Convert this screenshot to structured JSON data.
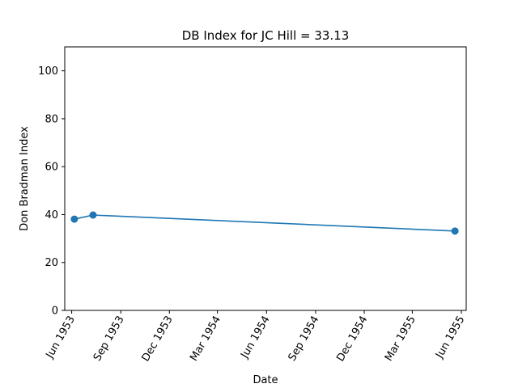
{
  "chart_data": {
    "type": "line",
    "title": "DB Index for JC Hill = 33.13",
    "xlabel": "Date",
    "ylabel": "Don Bradman Index",
    "x_ticks": [
      {
        "date": "1953-06-01",
        "label": "Jun 1953"
      },
      {
        "date": "1953-09-01",
        "label": "Sep 1953"
      },
      {
        "date": "1953-12-01",
        "label": "Dec 1953"
      },
      {
        "date": "1954-03-01",
        "label": "Mar 1954"
      },
      {
        "date": "1954-06-01",
        "label": "Jun 1954"
      },
      {
        "date": "1954-09-01",
        "label": "Sep 1954"
      },
      {
        "date": "1954-12-01",
        "label": "Dec 1954"
      },
      {
        "date": "1955-03-01",
        "label": "Mar 1955"
      },
      {
        "date": "1955-06-01",
        "label": "Jun 1955"
      }
    ],
    "y_ticks": [
      0,
      20,
      40,
      60,
      80,
      100
    ],
    "xlim": [
      "1953-05-19",
      "1955-06-10"
    ],
    "ylim": [
      0,
      110
    ],
    "grid": false,
    "color": "#1f77b4",
    "series": [
      {
        "x": [
          "1953-06-06",
          "1953-07-11",
          "1955-05-20"
        ],
        "y": [
          38.1,
          39.8,
          33.13
        ]
      }
    ]
  }
}
